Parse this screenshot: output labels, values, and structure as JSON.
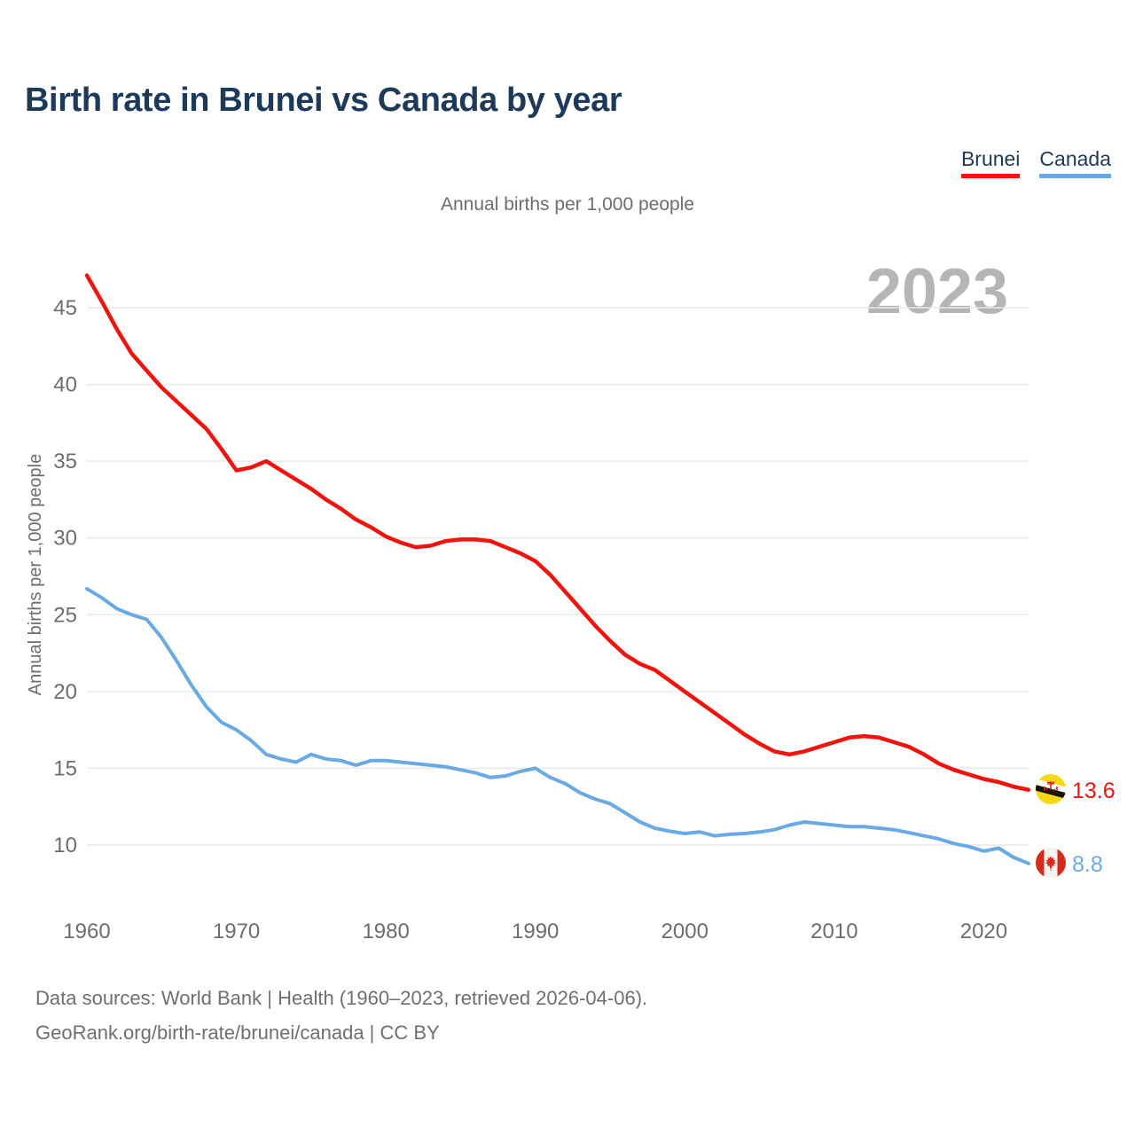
{
  "header": {
    "title": "Birth rate in Brunei vs Canada by year"
  },
  "legend": {
    "items": [
      {
        "label": "Brunei",
        "color": "#f1130e"
      },
      {
        "label": "Canada",
        "color": "#6aaae4"
      }
    ]
  },
  "subtitle": "Annual births per 1,000 people",
  "watermark": "2023",
  "end_labels": {
    "brunei": {
      "value": "13.6",
      "flag_icon": "brunei-flag-icon",
      "color": "#f1130e"
    },
    "canada": {
      "value": "8.8",
      "flag_icon": "canada-flag-icon",
      "color": "#6aaae4"
    }
  },
  "footer": {
    "line1": "Data sources: World Bank | Health (1960–2023, retrieved 2026-04-06).",
    "line2": "GeoRank.org/birth-rate/brunei/canada | CC BY"
  },
  "chart_data": {
    "type": "line",
    "title": "Birth rate in Brunei vs Canada by year",
    "subtitle": "Annual births per 1,000 people",
    "ylabel": "Annual births per 1,000 people",
    "xlabel": "",
    "x_ticks": [
      1960,
      1970,
      1980,
      1990,
      2000,
      2010,
      2020
    ],
    "y_ticks": [
      10,
      15,
      20,
      25,
      30,
      35,
      40,
      45
    ],
    "xlim": [
      1960,
      2023
    ],
    "ylim": [
      10,
      45
    ],
    "grid": "horizontal-only",
    "legend_position": "top-right",
    "x": [
      1960,
      1961,
      1962,
      1963,
      1964,
      1965,
      1966,
      1967,
      1968,
      1969,
      1970,
      1971,
      1972,
      1973,
      1974,
      1975,
      1976,
      1977,
      1978,
      1979,
      1980,
      1981,
      1982,
      1983,
      1984,
      1985,
      1986,
      1987,
      1988,
      1989,
      1990,
      1991,
      1992,
      1993,
      1994,
      1995,
      1996,
      1997,
      1998,
      1999,
      2000,
      2001,
      2002,
      2003,
      2004,
      2005,
      2006,
      2007,
      2008,
      2009,
      2010,
      2011,
      2012,
      2013,
      2014,
      2015,
      2016,
      2017,
      2018,
      2019,
      2020,
      2021,
      2022,
      2023
    ],
    "series": [
      {
        "name": "Brunei",
        "color": "#f1130e",
        "stroke_width": 4.5,
        "values": [
          47.1,
          45.4,
          43.6,
          42.0,
          40.9,
          39.8,
          38.9,
          38.0,
          37.1,
          35.8,
          34.4,
          34.6,
          35.0,
          34.4,
          33.8,
          33.2,
          32.5,
          31.9,
          31.2,
          30.7,
          30.1,
          29.7,
          29.4,
          29.5,
          29.8,
          29.9,
          29.9,
          29.8,
          29.4,
          29.0,
          28.5,
          27.6,
          26.5,
          25.4,
          24.3,
          23.3,
          22.4,
          21.8,
          21.4,
          20.7,
          20.0,
          19.3,
          18.6,
          17.9,
          17.2,
          16.6,
          16.1,
          15.9,
          16.1,
          16.4,
          16.7,
          17.0,
          17.1,
          17.0,
          16.7,
          16.4,
          15.9,
          15.3,
          14.9,
          14.6,
          14.3,
          14.1,
          13.8,
          13.6
        ]
      },
      {
        "name": "Canada",
        "color": "#6aaae4",
        "stroke_width": 4,
        "values": [
          26.7,
          26.1,
          25.4,
          25.0,
          24.7,
          23.5,
          22.0,
          20.4,
          19.0,
          18.0,
          17.5,
          16.8,
          15.9,
          15.6,
          15.4,
          15.9,
          15.6,
          15.5,
          15.2,
          15.5,
          15.5,
          15.4,
          15.3,
          15.2,
          15.1,
          14.9,
          14.7,
          14.4,
          14.5,
          14.8,
          15.0,
          14.4,
          14.0,
          13.4,
          13.0,
          12.7,
          12.1,
          11.5,
          11.1,
          10.9,
          10.75,
          10.85,
          10.6,
          10.7,
          10.75,
          10.85,
          11.0,
          11.3,
          11.5,
          11.4,
          11.3,
          11.2,
          11.2,
          11.1,
          11.0,
          10.8,
          10.6,
          10.4,
          10.1,
          9.9,
          9.6,
          9.8,
          9.2,
          8.8
        ]
      }
    ]
  }
}
